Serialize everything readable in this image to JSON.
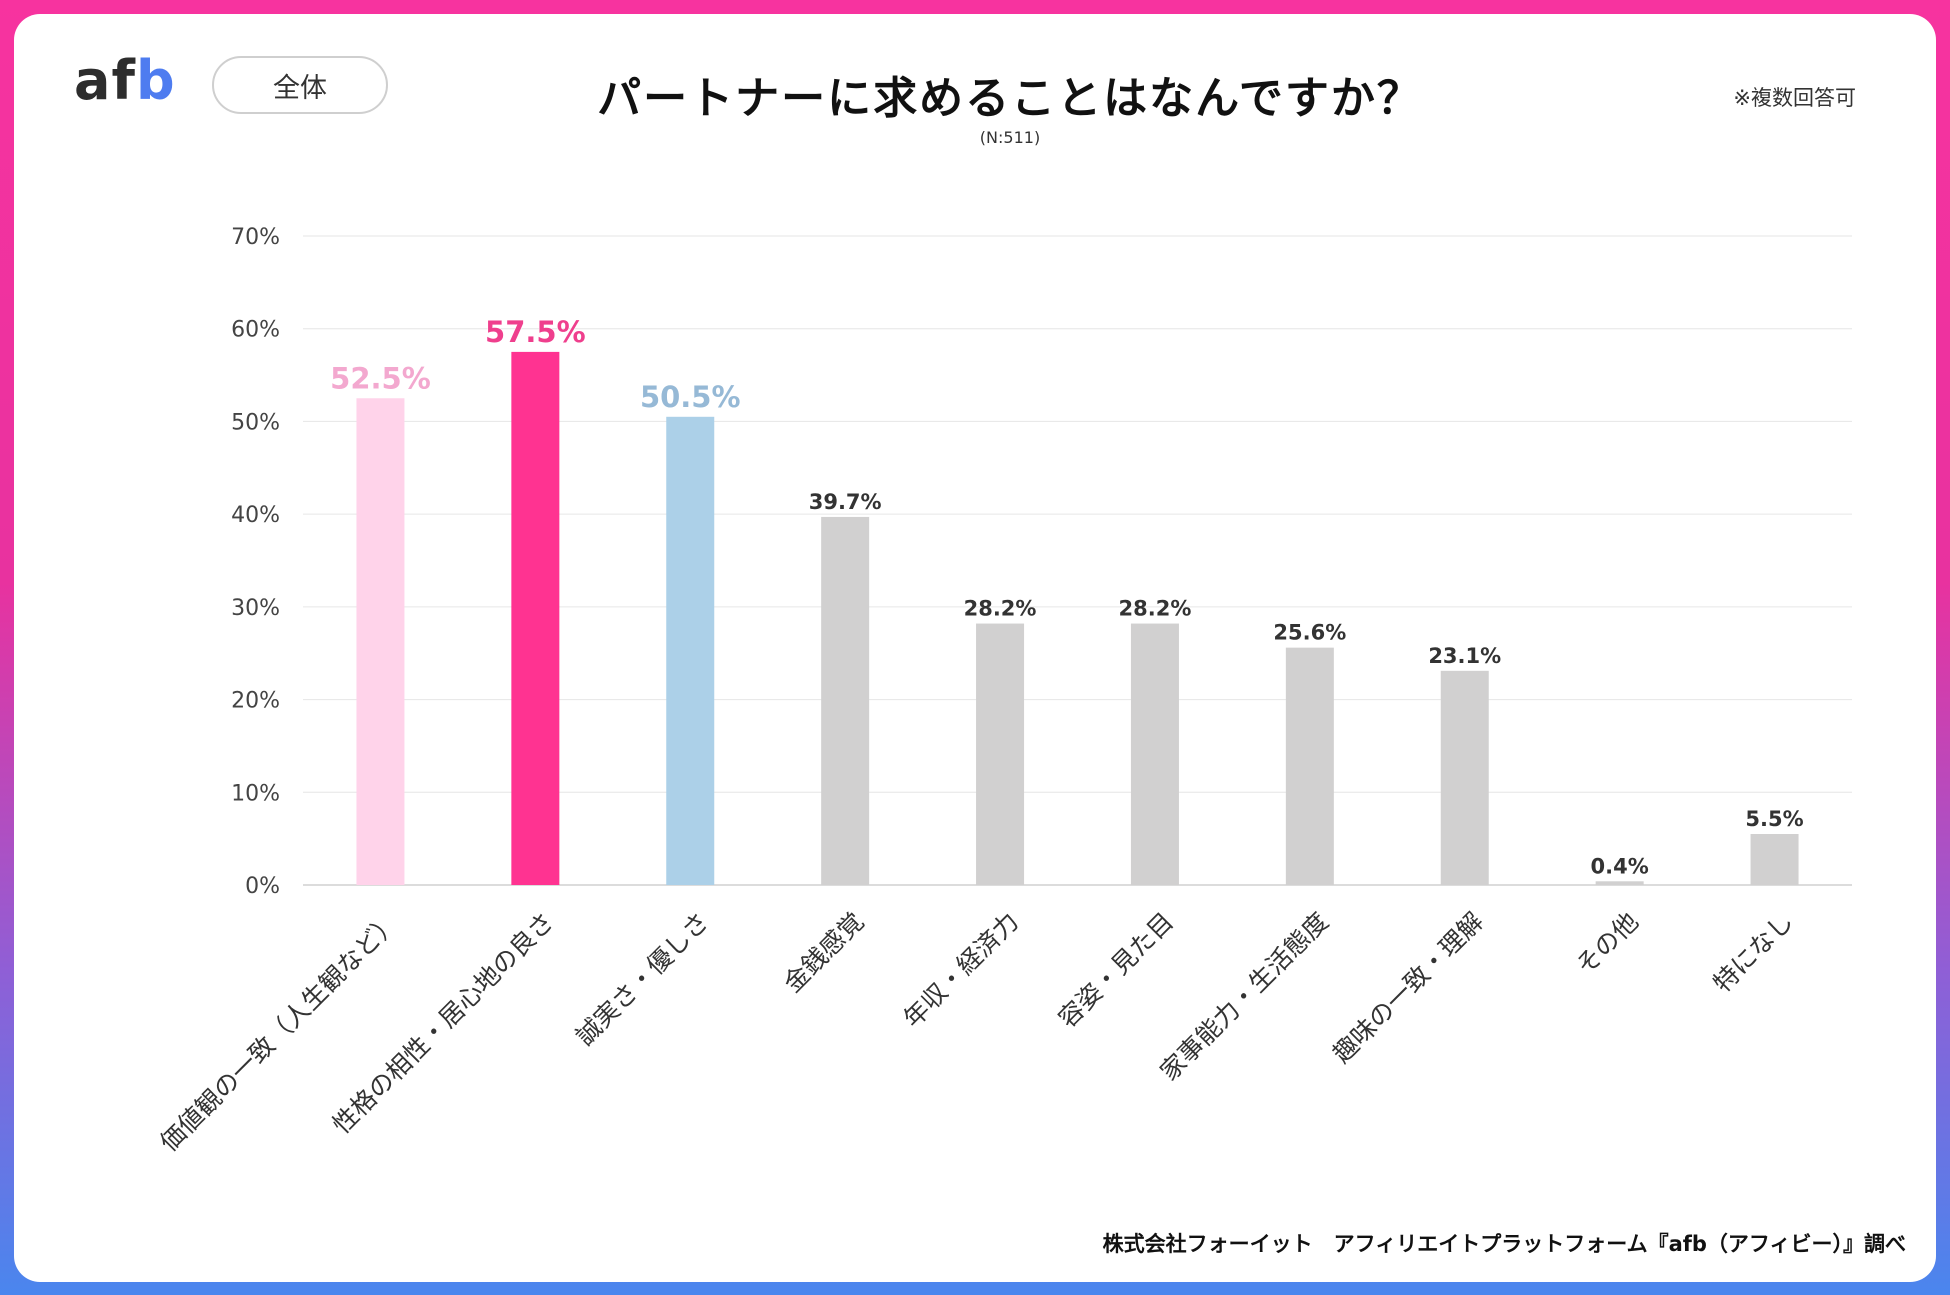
{
  "logo": {
    "prefix": "af",
    "suffix": "b"
  },
  "segment_label": "全体",
  "note": "※複数回答可",
  "source": "株式会社フォーイット　アフィリエイトプラットフォーム『afb（アフィビー）』調べ",
  "chart_data": {
    "type": "bar",
    "title": "パートナーに求めることはなんですか？",
    "subtitle": "(N:511)",
    "xlabel": "",
    "ylabel": "",
    "ylim": [
      0,
      70
    ],
    "y_ticks": [
      0,
      10,
      20,
      30,
      40,
      50,
      60,
      70
    ],
    "y_tick_labels": [
      "0%",
      "10%",
      "20%",
      "30%",
      "40%",
      "50%",
      "60%",
      "70%"
    ],
    "grid": true,
    "categories": [
      "価値観の一致（人生観など）",
      "性格の相性・居心地の良さ",
      "誠実さ・優しさ",
      "金銭感覚",
      "年収・経済力",
      "容姿・見た目",
      "家事能力・生活態度",
      "趣味の一致・理解",
      "その他",
      "特になし"
    ],
    "values": [
      52.5,
      57.5,
      50.5,
      39.7,
      28.2,
      28.2,
      25.6,
      23.1,
      0.4,
      5.5
    ],
    "value_labels": [
      "52.5%",
      "57.5%",
      "50.5%",
      "39.7%",
      "28.2%",
      "28.2%",
      "25.6%",
      "23.1%",
      "0.4%",
      "5.5%"
    ],
    "colors": [
      "#ffd3ea",
      "#ff3391",
      "#acd0e8",
      "#d1d0d0",
      "#d1d0d0",
      "#d1d0d0",
      "#d1d0d0",
      "#d1d0d0",
      "#d1d0d0",
      "#d1d0d0"
    ],
    "label_colors": [
      "#f3a8cf",
      "#ef3f8d",
      "#96b9d6",
      "#333333",
      "#333333",
      "#333333",
      "#333333",
      "#333333",
      "#333333",
      "#333333"
    ]
  }
}
